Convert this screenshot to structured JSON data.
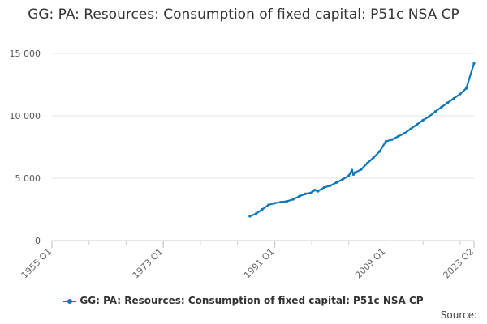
{
  "chart_data": {
    "type": "line",
    "title": "GG: PA: Resources: Consumption of fixed capital: P51c NSA CP",
    "xlabel": "",
    "ylabel": "",
    "x_range": [
      "1955 Q1",
      "2023 Q2"
    ],
    "x_ticks": [
      "1955 Q1",
      "1973 Q1",
      "1991 Q1",
      "2009 Q1",
      "2023 Q2"
    ],
    "ylim": [
      0,
      15000
    ],
    "y_ticks": [
      0,
      5000,
      10000,
      15000
    ],
    "y_tick_labels": [
      "0",
      "5 000",
      "10 000",
      "15 000"
    ],
    "grid": "horizontal",
    "legend_position": "bottom",
    "series": [
      {
        "name": "GG: PA: Resources: Consumption of fixed capital: P51c NSA CP",
        "color": "#0e77b9",
        "x": [
          1987.0,
          1988.0,
          1989.0,
          1990.0,
          1991.0,
          1992.0,
          1993.0,
          1994.0,
          1995.0,
          1996.0,
          1997.0,
          1997.5,
          1998.0,
          1999.0,
          2000.0,
          2001.0,
          2002.0,
          2003.0,
          2003.5,
          2003.75,
          2004.0,
          2005.0,
          2006.0,
          2007.0,
          2008.0,
          2009.0,
          2010.0,
          2011.0,
          2012.0,
          2013.0,
          2014.0,
          2015.0,
          2016.0,
          2017.0,
          2018.0,
          2019.0,
          2020.0,
          2021.0,
          2022.0,
          2023.25
        ],
        "y": [
          1950,
          2150,
          2500,
          2850,
          3000,
          3080,
          3150,
          3300,
          3550,
          3750,
          3850,
          4050,
          3950,
          4250,
          4400,
          4650,
          4900,
          5200,
          5650,
          5300,
          5450,
          5700,
          6200,
          6650,
          7150,
          7950,
          8100,
          8350,
          8600,
          8950,
          9300,
          9650,
          9950,
          10350,
          10700,
          11050,
          11400,
          11750,
          12200,
          14200
        ]
      }
    ]
  },
  "legend": {
    "label": "GG: PA: Resources: Consumption of fixed capital: P51c NSA CP"
  },
  "footer": {
    "source": "Source:"
  }
}
